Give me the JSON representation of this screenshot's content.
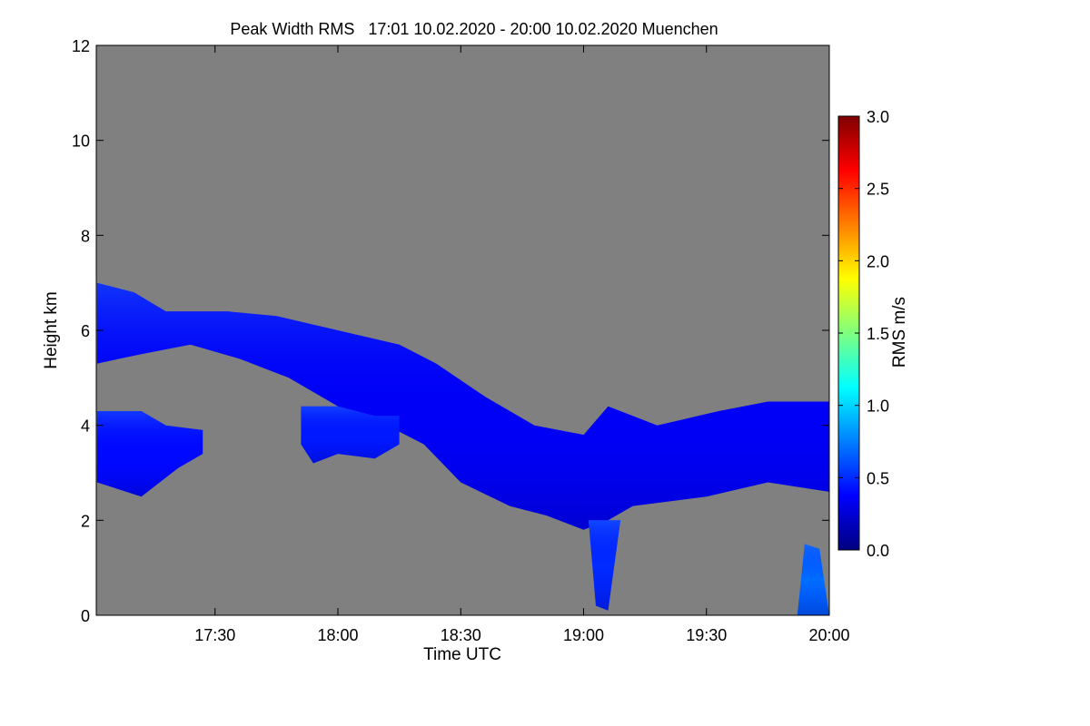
{
  "chart_data": {
    "type": "heatmap",
    "title": "Peak Width RMS   17:01 10.02.2020 - 20:00 10.02.2020 Muenchen",
    "xlabel": "Time UTC",
    "ylabel": "Height km",
    "xlim_hours": [
      17.0167,
      20.0
    ],
    "ylim": [
      0,
      12
    ],
    "x_ticks": [
      {
        "value": 17.5,
        "label": "17:30"
      },
      {
        "value": 18.0,
        "label": "18:00"
      },
      {
        "value": 18.5,
        "label": "18:30"
      },
      {
        "value": 19.0,
        "label": "19:00"
      },
      {
        "value": 19.5,
        "label": "19:30"
      },
      {
        "value": 20.0,
        "label": "20:00"
      }
    ],
    "y_ticks": [
      {
        "value": 0,
        "label": "0"
      },
      {
        "value": 2,
        "label": "2"
      },
      {
        "value": 4,
        "label": "4"
      },
      {
        "value": 6,
        "label": "6"
      },
      {
        "value": 8,
        "label": "8"
      },
      {
        "value": 10,
        "label": "10"
      },
      {
        "value": 12,
        "label": "12"
      }
    ],
    "colorbar": {
      "label": "RMS m/s",
      "range": [
        0.0,
        3.0
      ],
      "ticks": [
        {
          "value": 0.0,
          "label": "0.0"
        },
        {
          "value": 0.5,
          "label": "0.5"
        },
        {
          "value": 1.0,
          "label": "1.0"
        },
        {
          "value": 1.5,
          "label": "1.5"
        },
        {
          "value": 2.0,
          "label": "2.0"
        },
        {
          "value": 2.5,
          "label": "2.5"
        },
        {
          "value": 3.0,
          "label": "3.0"
        }
      ],
      "stops": [
        "#00007f",
        "#0000ff",
        "#007fff",
        "#00ffff",
        "#7fff7f",
        "#ffff00",
        "#ff7f00",
        "#ff0000",
        "#7f0000"
      ]
    },
    "background_color": "#808080",
    "echo_regions": [
      {
        "name": "upper-cloud-layer",
        "rms": 0.35,
        "top": [
          [
            17.02,
            7.0
          ],
          [
            17.17,
            6.8
          ],
          [
            17.3,
            6.4
          ],
          [
            17.55,
            6.4
          ],
          [
            17.75,
            6.3
          ],
          [
            18.0,
            6.0
          ],
          [
            18.25,
            5.7
          ],
          [
            18.4,
            5.3
          ],
          [
            18.6,
            4.6
          ],
          [
            18.8,
            4.0
          ],
          [
            19.0,
            3.8
          ],
          [
            19.1,
            4.4
          ],
          [
            19.3,
            4.0
          ],
          [
            19.55,
            4.3
          ],
          [
            19.75,
            4.5
          ],
          [
            20.0,
            4.5
          ]
        ],
        "bottom": [
          [
            20.0,
            2.6
          ],
          [
            19.75,
            2.8
          ],
          [
            19.5,
            2.5
          ],
          [
            19.2,
            2.3
          ],
          [
            19.1,
            2.0
          ],
          [
            19.0,
            1.8
          ],
          [
            18.85,
            2.1
          ],
          [
            18.7,
            2.3
          ],
          [
            18.5,
            2.8
          ],
          [
            18.35,
            3.6
          ],
          [
            18.2,
            4.0
          ],
          [
            18.0,
            4.4
          ],
          [
            17.8,
            5.0
          ],
          [
            17.6,
            5.4
          ],
          [
            17.4,
            5.7
          ],
          [
            17.2,
            5.5
          ],
          [
            17.02,
            5.3
          ]
        ]
      },
      {
        "name": "lower-cloud-layer",
        "rms": 0.4,
        "top": [
          [
            17.02,
            4.3
          ],
          [
            17.2,
            4.3
          ],
          [
            17.3,
            4.0
          ],
          [
            17.45,
            3.9
          ]
        ],
        "bottom": [
          [
            17.45,
            3.4
          ],
          [
            17.35,
            3.1
          ],
          [
            17.2,
            2.5
          ],
          [
            17.02,
            2.8
          ]
        ]
      },
      {
        "name": "fall-streak",
        "rms": 0.45,
        "top": [
          [
            17.85,
            4.4
          ],
          [
            18.0,
            4.4
          ],
          [
            18.15,
            4.2
          ],
          [
            18.25,
            4.2
          ]
        ],
        "bottom": [
          [
            18.25,
            3.6
          ],
          [
            18.15,
            3.3
          ],
          [
            18.0,
            3.4
          ],
          [
            17.9,
            3.2
          ],
          [
            17.85,
            3.6
          ]
        ]
      },
      {
        "name": "precip-shaft-1905",
        "rms": 0.5,
        "top": [
          [
            19.02,
            2.0
          ],
          [
            19.15,
            2.0
          ]
        ],
        "bottom": [
          [
            19.1,
            0.1
          ],
          [
            19.05,
            0.2
          ]
        ]
      },
      {
        "name": "precip-shaft-2000",
        "rms": 0.7,
        "top": [
          [
            19.9,
            1.5
          ],
          [
            19.96,
            1.4
          ]
        ],
        "bottom": [
          [
            20.0,
            0.0
          ],
          [
            19.87,
            0.0
          ]
        ]
      }
    ]
  }
}
